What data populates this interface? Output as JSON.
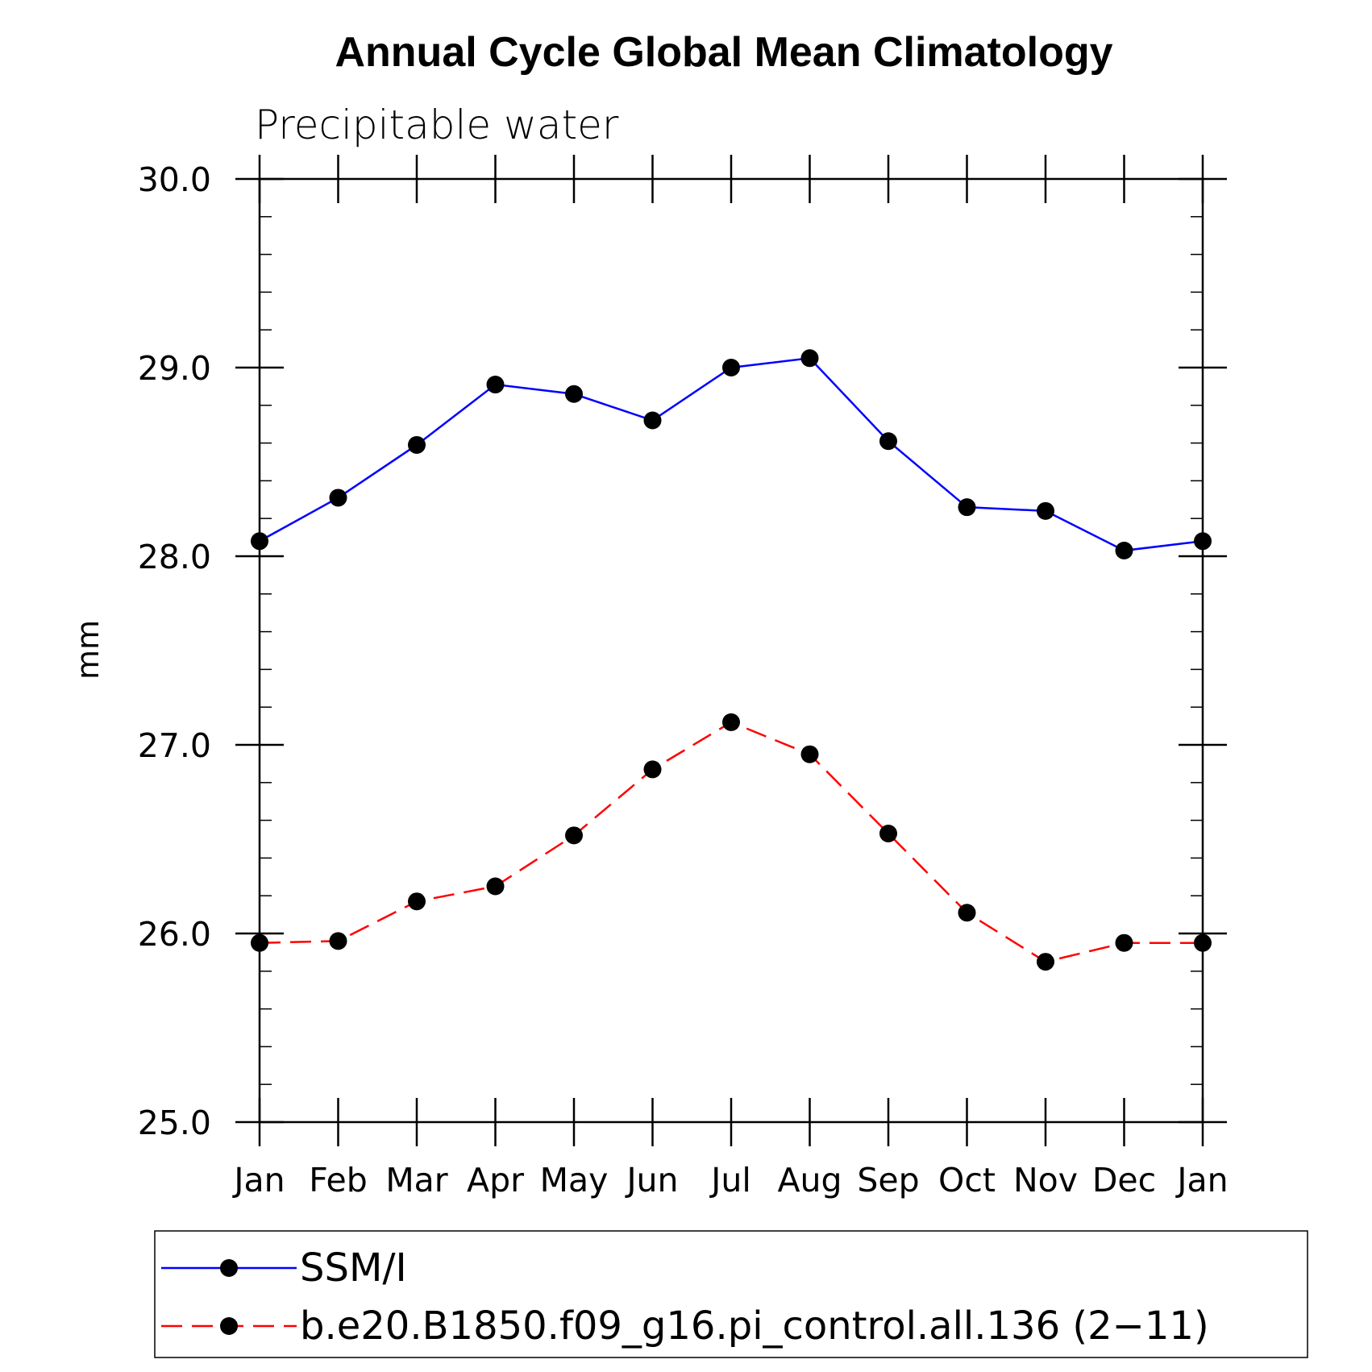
{
  "chart_data": {
    "type": "line",
    "title": "Annual Cycle Global Mean Climatology",
    "subtitle": "Precipitable water",
    "xlabel": "",
    "ylabel": "mm",
    "categories": [
      "Jan",
      "Feb",
      "Mar",
      "Apr",
      "May",
      "Jun",
      "Jul",
      "Aug",
      "Sep",
      "Oct",
      "Nov",
      "Dec",
      "Jan"
    ],
    "ylim": [
      25.0,
      30.0
    ],
    "yticks": [
      "25.0",
      "26.0",
      "27.0",
      "28.0",
      "29.0",
      "30.0"
    ],
    "series": [
      {
        "name": "SSM/I",
        "color": "#0000ff",
        "dash": "solid",
        "values": [
          28.08,
          28.31,
          28.59,
          28.91,
          28.86,
          28.72,
          29.0,
          29.05,
          28.61,
          28.26,
          28.24,
          28.03,
          28.08
        ]
      },
      {
        "name": "b.e20.B1850.f09_g16.pi_control.all.136 (2−11)",
        "color": "#ff0000",
        "dash": "dashed",
        "values": [
          25.95,
          25.96,
          26.17,
          26.25,
          26.52,
          26.87,
          27.12,
          26.95,
          26.53,
          26.11,
          25.85,
          25.95,
          25.95
        ]
      }
    ],
    "legend_position": "bottom"
  }
}
